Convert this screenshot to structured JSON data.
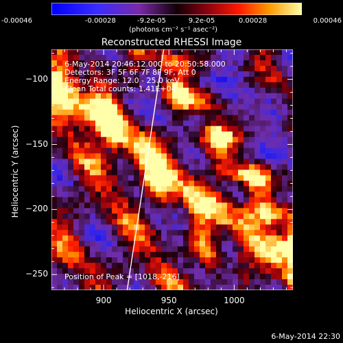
{
  "colorbar": {
    "tick_labels": [
      "-0.00046",
      "-0.00028",
      "-9.2e-05",
      "9.2e-05",
      "0.00028",
      "0.00046"
    ],
    "tick_values": [
      -0.00046,
      -0.00028,
      -9.2e-05,
      9.2e-05,
      0.00028,
      0.00046
    ],
    "range": [
      -0.00046,
      0.00046
    ],
    "units": "(photons cm⁻² s⁻¹ asec⁻²)"
  },
  "chart_data": {
    "type": "heatmap",
    "title": "Reconstructed RHESSI Image",
    "xlabel": "Heliocentric X (arcsec)",
    "ylabel": "Heliocentric Y (arcsec)",
    "xlim": [
      860,
      1045
    ],
    "ylim": [
      -262,
      -77
    ],
    "x_ticks": [
      900,
      950,
      1000
    ],
    "x_tick_labels": [
      "900",
      "950",
      "1000"
    ],
    "y_ticks": [
      -100,
      -150,
      -200,
      -250
    ],
    "y_tick_labels": [
      "−100",
      "−150",
      "−200",
      "−250"
    ],
    "limb_line": [
      [
        918,
        -262
      ],
      [
        946,
        -77
      ]
    ],
    "annotations": [
      "6-May-2014 20:46:12.000 to 20:50:58.000",
      "Detectors: 3F 5F 6F 7F 8F 9F, Att 0",
      "Energy Range: 12.0 - 25.0 keV",
      "Clean    Total counts: 1.41E+04"
    ],
    "peak_label": "Position of Peak = [1018,-216]",
    "peak": [
      1018,
      -216
    ]
  },
  "timestamp": "6-May-2014 22:30"
}
